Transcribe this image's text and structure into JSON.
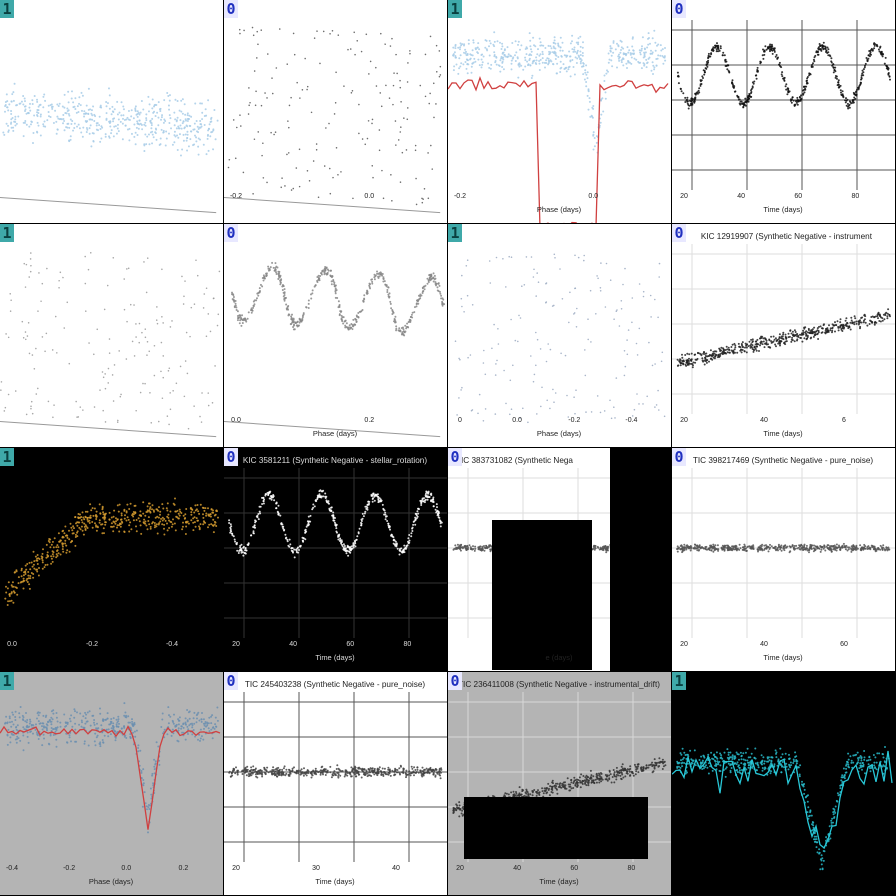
{
  "badge_colors": {
    "1": "#3fa9a9",
    "0": "#2030c0"
  },
  "tiles": [
    {
      "label": "1",
      "bg": "#ffffff",
      "fg": "#a8cde8",
      "style": "rotated-scatter",
      "title": "",
      "xlabel": "",
      "ticks": []
    },
    {
      "label": "0",
      "bg": "#ffffff",
      "fg": "#555555",
      "style": "rotated-sparse",
      "title": "",
      "xlabel": "",
      "ticks": [
        "-0.2",
        "0.0"
      ]
    },
    {
      "label": "1",
      "bg": "#ffffff",
      "fg": "#a8cde8",
      "style": "transit-red",
      "title": "",
      "xlabel": "Phase (days)",
      "ticks": [
        "-0.2",
        "0.0"
      ]
    },
    {
      "label": "0",
      "bg": "#ffffff",
      "fg": "#111111",
      "style": "sine",
      "title": "",
      "xlabel": "Time (days)",
      "ticks": [
        "20",
        "40",
        "60",
        "80"
      ]
    },
    {
      "label": "1",
      "bg": "#ffffff",
      "fg": "#999999",
      "style": "rotated-sparse",
      "title": "",
      "xlabel": "",
      "ticks": []
    },
    {
      "label": "0",
      "bg": "#ffffff",
      "fg": "#888888",
      "style": "rotated-sine",
      "title": "",
      "xlabel": "Phase (days)",
      "ticks": [
        "0.0",
        "0.2"
      ]
    },
    {
      "label": "1",
      "bg": "#ffffff",
      "fg": "#99a8c0",
      "style": "sparse-phase",
      "title": "",
      "xlabel": "Phase (days)",
      "ticks": [
        "0",
        "0.0",
        "-0.2",
        "-0.4"
      ]
    },
    {
      "label": "0",
      "bg": "#ffffff",
      "fg": "#222222",
      "style": "trend",
      "title": "KIC 12919907 (Synthetic Negative - instrument",
      "xlabel": "Time (days)",
      "ticks": [
        "20",
        "40",
        "6"
      ]
    },
    {
      "label": "1",
      "bg": "#000000",
      "fg": "#d29a2f",
      "style": "dark-transit",
      "title": "",
      "xlabel": "",
      "ticks": [
        "0.0",
        "-0.2",
        "-0.4"
      ]
    },
    {
      "label": "0",
      "bg": "#000000",
      "fg": "#ffffff",
      "style": "sine-dark",
      "title": "KIC 3581211 (Synthetic Negative - stellar_rotation)",
      "xlabel": "Time (days)",
      "ticks": [
        "20",
        "40",
        "60",
        "80"
      ]
    },
    {
      "label": "0",
      "bg": "#ffffff",
      "fg": "#555555",
      "style": "flat-occluded",
      "title": "TIC 383731082 (Synthetic Nega",
      "xlabel": "e (days)",
      "ticks": []
    },
    {
      "label": "0",
      "bg": "#ffffff",
      "fg": "#555555",
      "style": "flat",
      "title": "TIC 398217469 (Synthetic Negative - pure_noise)",
      "xlabel": "Time (days)",
      "ticks": [
        "20",
        "40",
        "60"
      ]
    },
    {
      "label": "1",
      "bg": "#b4b4b4",
      "fg": "#6b8fb0",
      "style": "transit-gray",
      "title": "",
      "xlabel": "Phase (days)",
      "ticks": [
        "-0.4",
        "-0.2",
        "0.0",
        "0.2"
      ]
    },
    {
      "label": "0",
      "bg": "#ffffff",
      "fg": "#444444",
      "style": "flat-thick",
      "title": "TIC 245403238 (Synthetic Negative - pure_noise)",
      "xlabel": "Time (days)",
      "ticks": [
        "20",
        "30",
        "40"
      ]
    },
    {
      "label": "0",
      "bg": "#b4b4b4",
      "fg": "#333333",
      "style": "trend-gray",
      "title": "TIC 236411008 (Synthetic Negative - instrumental_drift)",
      "xlabel": "Time (days)",
      "ticks": [
        "20",
        "40",
        "60",
        "80"
      ]
    },
    {
      "label": "1",
      "bg": "#000000",
      "fg": "#28b8c8",
      "style": "transit-cyan",
      "title": "",
      "xlabel": "",
      "ticks": []
    }
  ],
  "chart_data": [
    {
      "type": "scatter",
      "tile": 4,
      "title": "",
      "xlabel": "Time (days)",
      "xticks": [
        "20",
        "40",
        "60",
        "80"
      ],
      "series": [
        {
          "shape": "sinusoid",
          "period_days": 21,
          "x_range": [
            15,
            95
          ]
        }
      ]
    },
    {
      "type": "scatter",
      "tile": 8,
      "title": "KIC 12919907 (Synthetic Negative - instrument",
      "xlabel": "Time (days)",
      "xticks": [
        "20",
        "40",
        "6"
      ],
      "series": [
        {
          "shape": "linear-trend",
          "x_range": [
            15,
            65
          ]
        }
      ]
    },
    {
      "type": "scatter",
      "tile": 10,
      "title": "KIC 3581211 (Synthetic Negative - stellar_rotation)",
      "xlabel": "Time (days)",
      "xticks": [
        "20",
        "40",
        "60",
        "80"
      ],
      "series": [
        {
          "shape": "sinusoid",
          "period_days": 21,
          "x_range": [
            15,
            95
          ]
        }
      ]
    },
    {
      "type": "scatter",
      "tile": 12,
      "title": "TIC 398217469 (Synthetic Negative - pure_noise)",
      "xlabel": "Time (days)",
      "xticks": [
        "20",
        "40",
        "60"
      ],
      "series": [
        {
          "shape": "flat-noise"
        }
      ]
    },
    {
      "type": "line",
      "tile": 13,
      "title": "",
      "xlabel": "Phase (days)",
      "xticks": [
        "-0.4",
        "-0.2",
        "0.0",
        "0.2"
      ],
      "series": [
        {
          "shape": "transit-dip",
          "dip_center_phase": 0.0
        }
      ]
    },
    {
      "type": "scatter",
      "tile": 14,
      "title": "TIC 245403238 (Synthetic Negative - pure_noise)",
      "xlabel": "Time (days)",
      "xticks": [
        "20",
        "30",
        "40"
      ],
      "series": [
        {
          "shape": "flat-noise"
        }
      ]
    },
    {
      "type": "scatter",
      "tile": 15,
      "title": "TIC 236411008 (Synthetic Negative - instrumental_drift)",
      "xlabel": "Time (days)",
      "xticks": [
        "20",
        "40",
        "60",
        "80"
      ],
      "series": [
        {
          "shape": "linear-trend"
        }
      ]
    }
  ]
}
